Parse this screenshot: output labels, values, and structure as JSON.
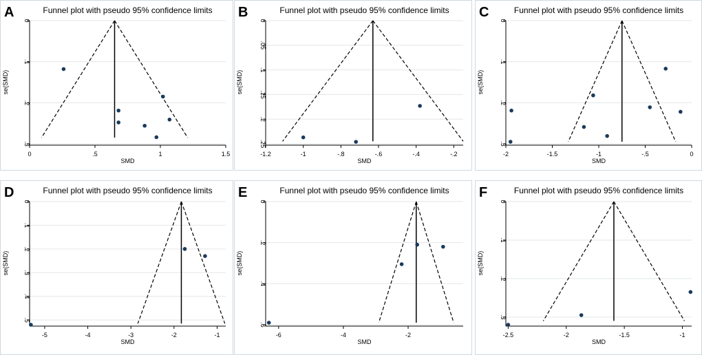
{
  "chart_data": [
    {
      "panel": "A",
      "type": "scatter",
      "title": "Funnel plot with pseudo 95% confidence limits",
      "xlabel": "SMD",
      "ylabel": "se(SMD)",
      "xlim": [
        0,
        1.5
      ],
      "ylim": [
        0,
        0.3
      ],
      "y_reversed": true,
      "xticks": [
        0,
        0.5,
        1,
        1.5
      ],
      "xtick_labels": [
        "0",
        ".5",
        "1",
        "1.5"
      ],
      "yticks": [
        0,
        0.1,
        0.2,
        0.3
      ],
      "ytick_labels": [
        "0",
        ".1",
        ".2",
        ".3"
      ],
      "grid": true,
      "pooled_smd": 0.65,
      "funnel_se_max": 0.285,
      "points": [
        {
          "x": 0.26,
          "y": 0.118
        },
        {
          "x": 0.68,
          "y": 0.219
        },
        {
          "x": 0.68,
          "y": 0.248
        },
        {
          "x": 0.88,
          "y": 0.256
        },
        {
          "x": 0.97,
          "y": 0.284
        },
        {
          "x": 1.02,
          "y": 0.185
        },
        {
          "x": 1.07,
          "y": 0.241
        }
      ]
    },
    {
      "panel": "B",
      "type": "scatter",
      "title": "Funnel plot with pseudo 95% confidence limits",
      "xlabel": "SMD",
      "ylabel": "se(SMD)",
      "xlim": [
        -1.2,
        -0.15
      ],
      "ylim": [
        0,
        0.25
      ],
      "y_reversed": true,
      "xticks": [
        -1.2,
        -1,
        -0.8,
        -0.6,
        -0.4,
        -0.2
      ],
      "xtick_labels": [
        "-1.2",
        "-1",
        "-.8",
        "-.6",
        "-.4",
        "-.2"
      ],
      "yticks": [
        0,
        0.05,
        0.1,
        0.15,
        0.2,
        0.25
      ],
      "ytick_labels": [
        "0",
        ".05",
        ".1",
        ".15",
        ".2",
        ".25"
      ],
      "grid": true,
      "pooled_smd": -0.63,
      "funnel_se_max": 0.245,
      "points": [
        {
          "x": -1.0,
          "y": 0.237
        },
        {
          "x": -0.72,
          "y": 0.246
        },
        {
          "x": -0.38,
          "y": 0.173
        }
      ]
    },
    {
      "panel": "C",
      "type": "scatter",
      "title": "Funnel plot with pseudo 95% confidence limits",
      "xlabel": "SMD",
      "ylabel": "se(SMD)",
      "xlim": [
        -2,
        0
      ],
      "ylim": [
        0,
        0.3
      ],
      "y_reversed": true,
      "xticks": [
        -2,
        -1.5,
        -1,
        -0.5,
        0
      ],
      "xtick_labels": [
        "-2",
        "-1.5",
        "-1",
        "-.5",
        "0"
      ],
      "yticks": [
        0,
        0.1,
        0.2,
        0.3
      ],
      "ytick_labels": [
        "0",
        ".1",
        ".2",
        ".3"
      ],
      "grid": true,
      "pooled_smd": -0.75,
      "funnel_se_max": 0.295,
      "points": [
        {
          "x": -1.94,
          "y": 0.219
        },
        {
          "x": -1.95,
          "y": 0.295
        },
        {
          "x": -1.06,
          "y": 0.182
        },
        {
          "x": -1.16,
          "y": 0.259
        },
        {
          "x": -0.91,
          "y": 0.281
        },
        {
          "x": -0.45,
          "y": 0.211
        },
        {
          "x": -0.28,
          "y": 0.117
        },
        {
          "x": -0.12,
          "y": 0.222
        }
      ]
    },
    {
      "panel": "D",
      "type": "scatter",
      "title": "Funnel plot with pseudo 95% confidence limits",
      "xlabel": "SMD",
      "ylabel": "se(SMD)",
      "xlim": [
        -5.35,
        -0.8
      ],
      "ylim": [
        0,
        0.52
      ],
      "y_reversed": true,
      "xticks": [
        -5,
        -4,
        -3,
        -2,
        -1
      ],
      "xtick_labels": [
        "-5",
        "-4",
        "-3",
        "-2",
        "-1"
      ],
      "yticks": [
        0,
        0.1,
        0.2,
        0.3,
        0.4,
        0.5
      ],
      "ytick_labels": [
        "0",
        ".1",
        ".2",
        ".3",
        ".4",
        ".5"
      ],
      "grid": true,
      "pooled_smd": -1.83,
      "funnel_se_max": 0.515,
      "points": [
        {
          "x": -5.32,
          "y": 0.52
        },
        {
          "x": -1.75,
          "y": 0.2
        },
        {
          "x": -1.28,
          "y": 0.23
        }
      ]
    },
    {
      "panel": "E",
      "type": "scatter",
      "title": "Funnel plot with pseudo 95% confidence limits",
      "xlabel": "SMD",
      "ylabel": "se(SMD)",
      "xlim": [
        -6.4,
        -0.3
      ],
      "ylim": [
        0,
        0.6
      ],
      "y_reversed": true,
      "xticks": [
        -6,
        -4,
        -2
      ],
      "xtick_labels": [
        "-6",
        "-4",
        "-2"
      ],
      "yticks": [
        0,
        0.2,
        0.4,
        0.6
      ],
      "ytick_labels": [
        "0",
        ".2",
        ".4",
        ".6"
      ],
      "grid": true,
      "pooled_smd": -1.75,
      "funnel_se_max": 0.59,
      "points": [
        {
          "x": -6.3,
          "y": 0.59
        },
        {
          "x": -2.2,
          "y": 0.305
        },
        {
          "x": -1.72,
          "y": 0.21
        },
        {
          "x": -0.92,
          "y": 0.22
        }
      ]
    },
    {
      "panel": "F",
      "type": "scatter",
      "title": "Funnel plot with pseudo 95% confidence limits",
      "xlabel": "SMD",
      "ylabel": "se(SMD)",
      "xlim": [
        -2.52,
        -0.92
      ],
      "ylim": [
        0,
        0.32
      ],
      "y_reversed": true,
      "xticks": [
        -2.5,
        -2,
        -1.5,
        -1
      ],
      "xtick_labels": [
        "-2.5",
        "-2",
        "-1.5",
        "-1"
      ],
      "yticks": [
        0,
        0.1,
        0.2,
        0.3
      ],
      "ytick_labels": [
        "0",
        ".1",
        ".2",
        ".3"
      ],
      "grid": true,
      "pooled_smd": -1.59,
      "funnel_se_max": 0.31,
      "points": [
        {
          "x": -2.5,
          "y": 0.32
        },
        {
          "x": -1.87,
          "y": 0.295
        },
        {
          "x": -0.93,
          "y": 0.235
        }
      ]
    }
  ],
  "colors": {
    "background": "#ffffff",
    "frame": "#cfd8de",
    "grid": "#e2e6e9",
    "axis": "#000000",
    "point": "#1b3a5c",
    "text": "#000000"
  }
}
